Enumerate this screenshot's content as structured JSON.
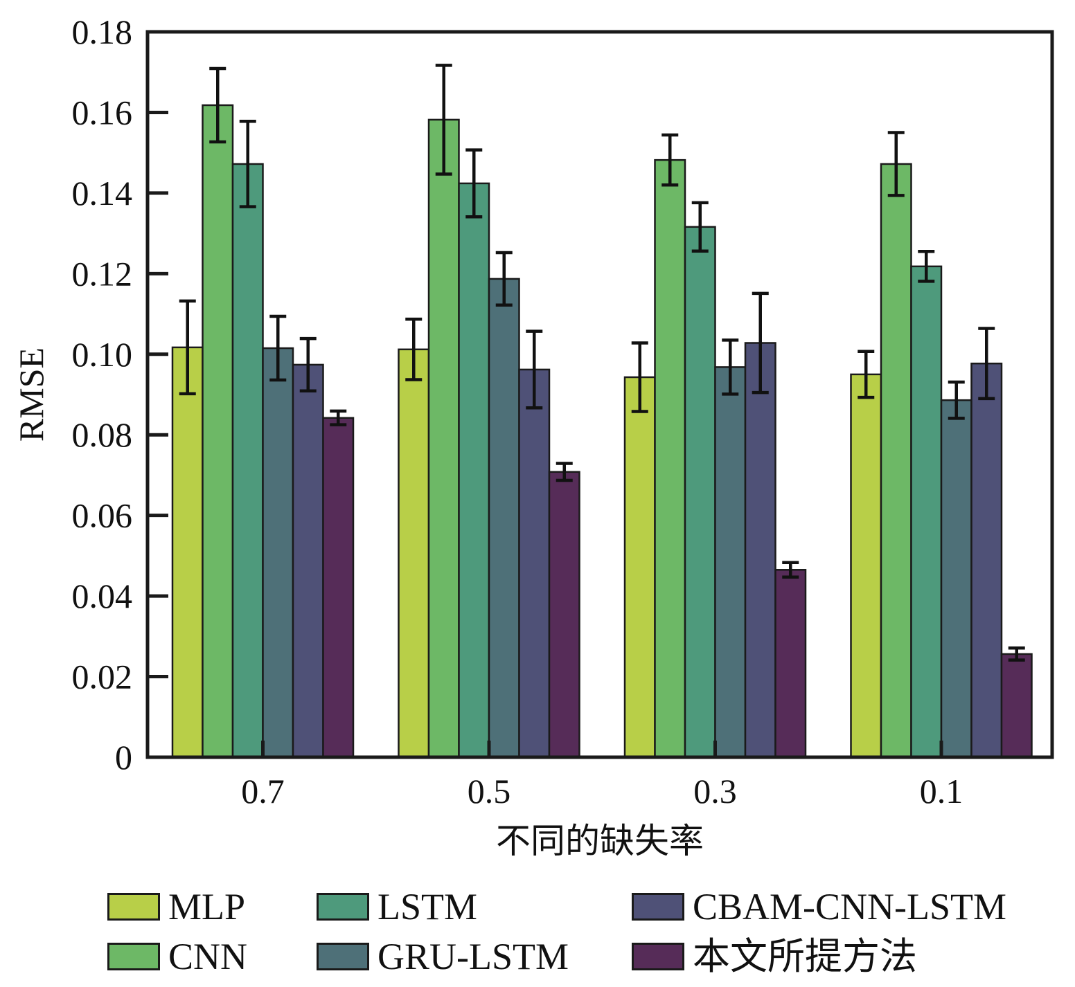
{
  "chart_data": {
    "type": "bar",
    "title": "",
    "xlabel": "不同的缺失率",
    "ylabel": "RMSE",
    "ylim": [
      0,
      0.18
    ],
    "yticks": [
      "0",
      "0.02",
      "0.04",
      "0.06",
      "0.08",
      "0.10",
      "0.12",
      "0.14",
      "0.16",
      "0.18"
    ],
    "ytick_values": [
      0,
      0.02,
      0.04,
      0.06,
      0.08,
      0.1,
      0.12,
      0.14,
      0.16,
      0.18
    ],
    "categories": [
      "0.7",
      "0.5",
      "0.3",
      "0.1"
    ],
    "grid": false,
    "legend_position": "bottom",
    "error_bars": true,
    "series": [
      {
        "name": "MLP",
        "color": "#b8cf48",
        "values": [
          0.1017,
          0.1012,
          0.0943,
          0.095
        ],
        "errors": [
          0.0115,
          0.0075,
          0.0085,
          0.0057
        ]
      },
      {
        "name": "CNN",
        "color": "#6db866",
        "values": [
          0.1618,
          0.1582,
          0.1482,
          0.1472
        ],
        "errors": [
          0.0091,
          0.0135,
          0.0062,
          0.0078
        ]
      },
      {
        "name": "LSTM",
        "color": "#4e9a7c",
        "values": [
          0.1472,
          0.1424,
          0.1316,
          0.1218
        ],
        "errors": [
          0.0106,
          0.0083,
          0.006,
          0.0037
        ]
      },
      {
        "name": "GRU-LSTM",
        "color": "#4e7078",
        "values": [
          0.1015,
          0.1187,
          0.0968,
          0.0886
        ],
        "errors": [
          0.0079,
          0.0065,
          0.0067,
          0.0045
        ]
      },
      {
        "name": "CBAM-CNN-LSTM",
        "color": "#4f5177",
        "values": [
          0.0974,
          0.0962,
          0.1028,
          0.0977
        ],
        "errors": [
          0.0065,
          0.0095,
          0.0123,
          0.0087
        ]
      },
      {
        "name": "本文所提方法",
        "color": "#562c58",
        "values": [
          0.0842,
          0.0708,
          0.0465,
          0.0256
        ],
        "errors": [
          0.0017,
          0.0021,
          0.0018,
          0.0015
        ]
      }
    ]
  }
}
